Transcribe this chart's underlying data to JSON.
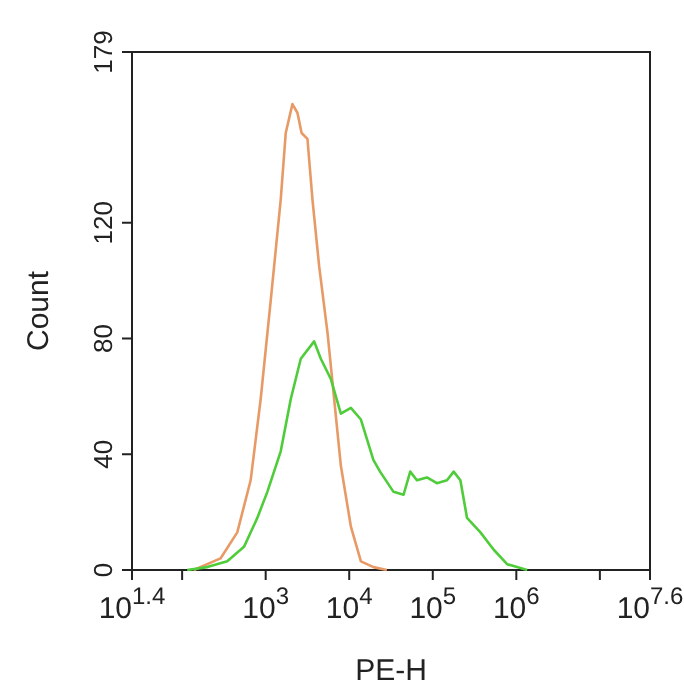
{
  "chart_data": {
    "type": "line",
    "xlabel": "PE-H",
    "ylabel": "Count",
    "log": "x",
    "grid": false,
    "marker": "none",
    "line_style": "solid",
    "xlim": [
      25.12,
      39810717
    ],
    "xticks": [
      {
        "value": 25.12,
        "label": "10$^{1.4}$"
      },
      {
        "value": 100,
        "label": null
      },
      {
        "value": 1000,
        "label": "10$^{3}$"
      },
      {
        "value": 10000,
        "label": "10$^{4}$"
      },
      {
        "value": 100000,
        "label": "10$^{5}$"
      },
      {
        "value": 1000000,
        "label": "10$^{6}$"
      },
      {
        "value": 10000000,
        "label": null
      },
      {
        "value": 39810717,
        "label": "10$^{7.6}$"
      }
    ],
    "ylim": [
      0,
      179
    ],
    "yticks": [
      0,
      40,
      80,
      120,
      179
    ],
    "series": [
      {
        "color": "#e89a66",
        "x": [
          138,
          288,
          457,
          661,
          871,
          1148,
          1514,
          1738,
          2089,
          2399,
          2692,
          3162,
          3631,
          4365,
          5495,
          6607,
          7943,
          10470,
          13800,
          19500,
          28200
        ],
        "values": [
          0,
          4,
          13,
          31,
          59,
          93,
          128,
          151,
          161,
          158,
          151,
          149,
          128,
          105,
          82,
          59,
          36,
          15,
          3,
          1,
          0
        ]
      },
      {
        "color": "#4fcc3a",
        "x": [
          115,
          200,
          347,
          550,
          794,
          1047,
          1514,
          1995,
          2630,
          3802,
          4571,
          6026,
          7943,
          10470,
          13800,
          19500,
          23400,
          33900,
          44700,
          53700,
          64600,
          85100,
          112000,
          148000,
          178000,
          214000,
          257000,
          372000,
          537000,
          776000,
          1020000,
          1350000
        ],
        "values": [
          0,
          1,
          3,
          8,
          18,
          27,
          41,
          59,
          73,
          79,
          73,
          66,
          54,
          56,
          52,
          38,
          34,
          27,
          26,
          34,
          31,
          32,
          30,
          31,
          34,
          31,
          18,
          13,
          7,
          2,
          1,
          0
        ]
      }
    ]
  }
}
